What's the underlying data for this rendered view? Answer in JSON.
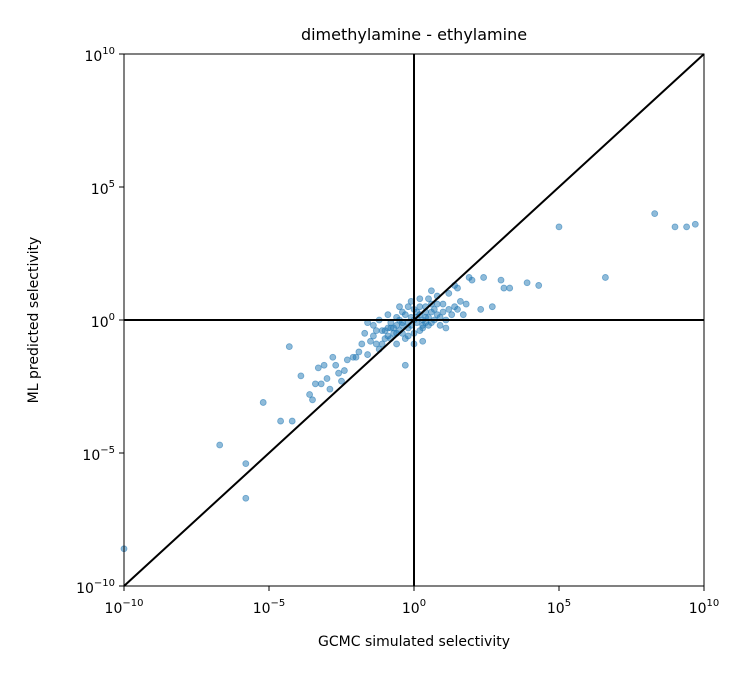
{
  "chart_data": {
    "type": "scatter",
    "title": "dimethylamine - ethylamine",
    "xlabel": "GCMC simulated selectivity",
    "ylabel": "ML predicted selectivity",
    "xscale": "log",
    "yscale": "log",
    "xlim_exp": [
      -10,
      10
    ],
    "ylim_exp": [
      -10,
      10
    ],
    "x_tick_exps": [
      -10,
      -5,
      0,
      5,
      10
    ],
    "y_tick_exps": [
      -10,
      -5,
      0,
      5,
      10
    ],
    "x_tick_labels": [
      {
        "base": "10",
        "exp": "−10"
      },
      {
        "base": "10",
        "exp": "−5"
      },
      {
        "base": "10",
        "exp": "0"
      },
      {
        "base": "10",
        "exp": "5"
      },
      {
        "base": "10",
        "exp": "10"
      }
    ],
    "y_tick_labels": [
      {
        "base": "10",
        "exp": "−10"
      },
      {
        "base": "10",
        "exp": "−5"
      },
      {
        "base": "10",
        "exp": "0"
      },
      {
        "base": "10",
        "exp": "5"
      },
      {
        "base": "10",
        "exp": "10"
      }
    ],
    "reference_lines": {
      "vertical_at_exp": 0,
      "horizontal_at_exp": 0,
      "diagonal": "y = x"
    },
    "marker_color": "#1f77b4",
    "line_color": "#000000",
    "points_log10": [
      [
        -10.0,
        -8.6
      ],
      [
        -6.7,
        -4.7
      ],
      [
        -5.8,
        -5.4
      ],
      [
        -5.8,
        -6.7
      ],
      [
        -5.2,
        -3.1
      ],
      [
        -4.6,
        -3.8
      ],
      [
        -4.2,
        -3.8
      ],
      [
        -4.3,
        -1.0
      ],
      [
        -3.9,
        -2.1
      ],
      [
        -3.6,
        -2.8
      ],
      [
        -3.5,
        -3.0
      ],
      [
        -3.4,
        -2.4
      ],
      [
        -3.3,
        -1.8
      ],
      [
        -3.2,
        -2.4
      ],
      [
        -3.1,
        -1.7
      ],
      [
        -3.0,
        -2.2
      ],
      [
        -2.9,
        -2.6
      ],
      [
        -2.8,
        -1.4
      ],
      [
        -2.7,
        -1.7
      ],
      [
        -2.6,
        -2.0
      ],
      [
        -2.5,
        -2.3
      ],
      [
        -2.4,
        -1.9
      ],
      [
        -2.3,
        -1.5
      ],
      [
        -2.1,
        -1.4
      ],
      [
        -2.0,
        -1.4
      ],
      [
        -1.9,
        -1.2
      ],
      [
        -1.8,
        -0.9
      ],
      [
        -1.7,
        -0.5
      ],
      [
        -1.6,
        -1.3
      ],
      [
        -1.5,
        -0.8
      ],
      [
        -1.4,
        -0.6
      ],
      [
        -1.3,
        -0.4
      ],
      [
        -1.2,
        -1.1
      ],
      [
        -1.1,
        -0.9
      ],
      [
        -1.0,
        -0.4
      ],
      [
        -0.9,
        -0.6
      ],
      [
        -0.8,
        -0.3
      ],
      [
        -0.7,
        -0.5
      ],
      [
        -0.6,
        -0.2
      ],
      [
        -0.5,
        -0.4
      ],
      [
        -0.4,
        -0.1
      ],
      [
        -0.3,
        -0.7
      ],
      [
        -0.2,
        -0.3
      ],
      [
        -0.1,
        -0.2
      ],
      [
        0.0,
        0.0
      ],
      [
        0.1,
        -0.1
      ],
      [
        0.2,
        0.2
      ],
      [
        0.3,
        -0.3
      ],
      [
        0.4,
        0.1
      ],
      [
        0.5,
        -0.2
      ],
      [
        0.6,
        0.3
      ],
      [
        0.7,
        0.0
      ],
      [
        0.8,
        0.2
      ],
      [
        -0.3,
        -1.7
      ],
      [
        0.3,
        -0.8
      ],
      [
        -1.3,
        -0.9
      ],
      [
        -0.6,
        -0.9
      ],
      [
        -0.4,
        0.3
      ],
      [
        -0.2,
        0.5
      ],
      [
        0.0,
        0.4
      ],
      [
        0.1,
        0.3
      ],
      [
        -0.5,
        0.0
      ],
      [
        -0.3,
        0.2
      ],
      [
        -0.1,
        0.1
      ],
      [
        0.2,
        0.5
      ],
      [
        0.4,
        0.3
      ],
      [
        0.6,
        0.6
      ],
      [
        -0.8,
        -0.1
      ],
      [
        -0.6,
        0.1
      ],
      [
        -0.9,
        -0.3
      ],
      [
        -0.7,
        -0.3
      ],
      [
        -0.4,
        -0.5
      ],
      [
        -0.2,
        -0.6
      ],
      [
        0.0,
        -0.5
      ],
      [
        0.2,
        -0.4
      ],
      [
        0.3,
        -0.2
      ],
      [
        0.5,
        0.1
      ],
      [
        0.7,
        0.4
      ],
      [
        0.8,
        0.6
      ],
      [
        -1.1,
        -0.4
      ],
      [
        -1.0,
        -0.7
      ],
      [
        -0.8,
        -0.7
      ],
      [
        -0.6,
        -0.5
      ],
      [
        -0.4,
        -0.2
      ],
      [
        -0.2,
        -0.1
      ],
      [
        0.1,
        0.1
      ],
      [
        0.3,
        0.0
      ],
      [
        0.4,
        -0.1
      ],
      [
        0.6,
        -0.1
      ],
      [
        0.9,
        0.1
      ],
      [
        1.0,
        0.3
      ],
      [
        1.2,
        0.4
      ],
      [
        1.4,
        0.5
      ],
      [
        1.6,
        0.7
      ],
      [
        1.8,
        0.6
      ],
      [
        -0.5,
        0.5
      ],
      [
        0.2,
        0.8
      ],
      [
        1.1,
        0.0
      ],
      [
        1.3,
        0.2
      ],
      [
        1.5,
        0.4
      ],
      [
        1.7,
        0.2
      ],
      [
        2.3,
        0.4
      ],
      [
        2.7,
        0.5
      ],
      [
        1.0,
        0.6
      ],
      [
        0.8,
        0.9
      ],
      [
        0.5,
        0.8
      ],
      [
        0.9,
        -0.2
      ],
      [
        1.1,
        -0.3
      ],
      [
        -1.2,
        0.0
      ],
      [
        -0.9,
        0.2
      ],
      [
        -1.4,
        -0.2
      ],
      [
        -1.6,
        -0.1
      ],
      [
        0.0,
        -0.9
      ],
      [
        -0.1,
        0.7
      ],
      [
        0.4,
        0.5
      ],
      [
        1.5,
        1.2
      ],
      [
        2.0,
        1.5
      ],
      [
        3.1,
        1.2
      ],
      [
        3.3,
        1.2
      ],
      [
        3.0,
        1.5
      ],
      [
        2.4,
        1.6
      ],
      [
        3.9,
        1.4
      ],
      [
        1.4,
        1.3
      ],
      [
        1.9,
        1.6
      ],
      [
        1.2,
        1.0
      ],
      [
        0.6,
        1.1
      ],
      [
        4.3,
        1.3
      ],
      [
        5.0,
        3.5
      ],
      [
        6.6,
        1.6
      ],
      [
        9.4,
        3.5
      ],
      [
        9.7,
        3.6
      ],
      [
        9.0,
        3.5
      ],
      [
        8.3,
        4.0
      ]
    ]
  }
}
